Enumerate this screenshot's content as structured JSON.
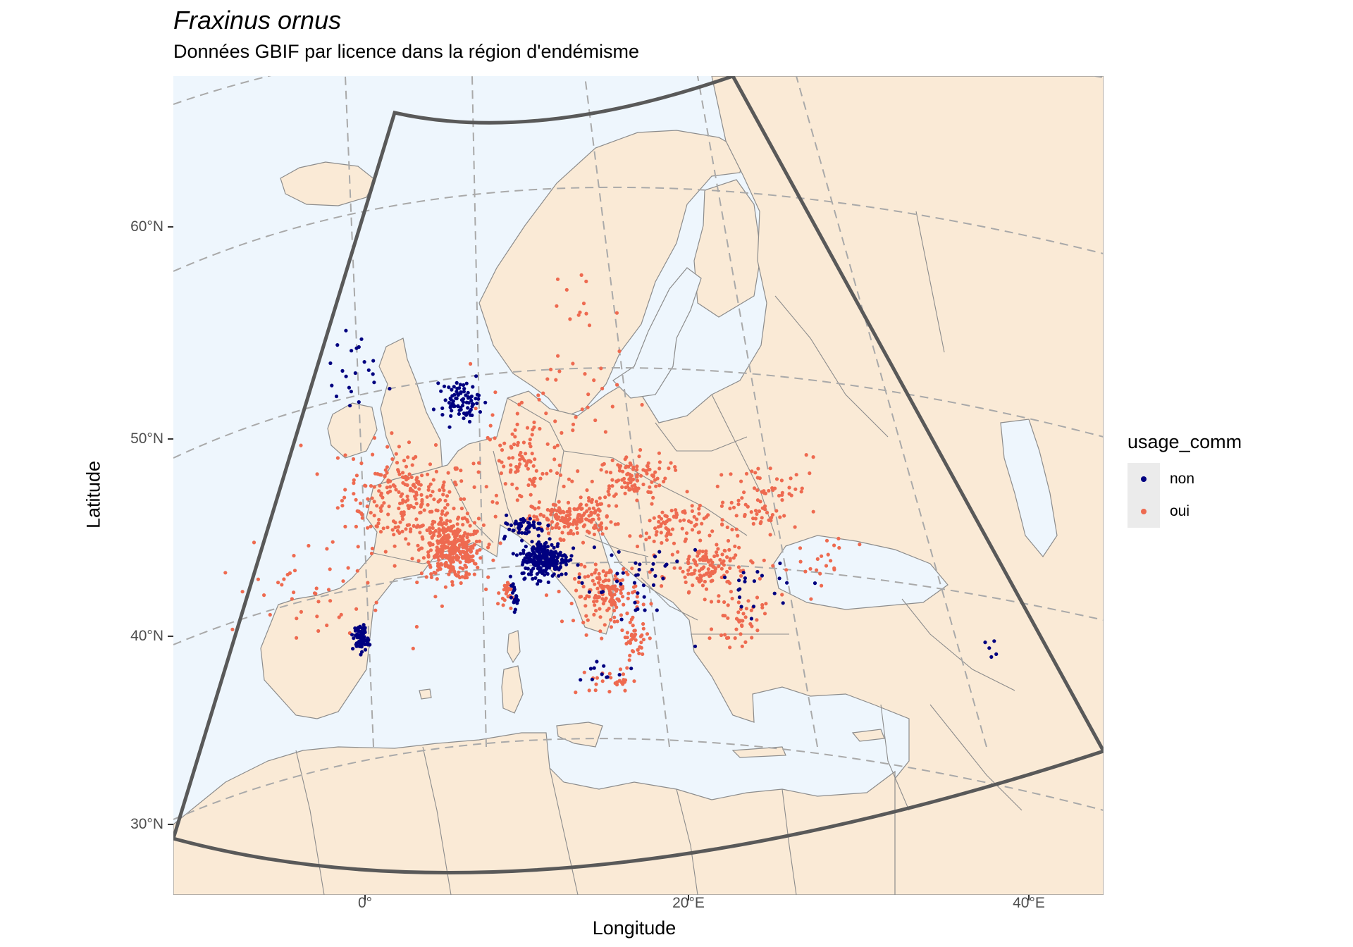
{
  "title": "Fraxinus ornus",
  "subtitle": "Données GBIF par licence dans la région d'endémisme",
  "x_axis": {
    "label": "Longitude",
    "ticks": [
      {
        "value": 0,
        "label": "0°"
      },
      {
        "value": 20,
        "label": "20°E"
      },
      {
        "value": 40,
        "label": "40°E"
      }
    ]
  },
  "y_axis": {
    "label": "Latitude",
    "ticks": [
      {
        "value": 30,
        "label": "30°N"
      },
      {
        "value": 40,
        "label": "40°N"
      },
      {
        "value": 50,
        "label": "50°N"
      },
      {
        "value": 60,
        "label": "60°N"
      }
    ]
  },
  "legend": {
    "title": "usage_comm",
    "items": [
      {
        "label": "non",
        "color": "#000080"
      },
      {
        "label": "oui",
        "color": "#ee6a50"
      }
    ]
  },
  "colors": {
    "sea": "#eef6fd",
    "land": "#faead6",
    "border": "#8c8c8c",
    "graticule": "#a9a9a9",
    "endemic_region": "#595959"
  },
  "map_data": {
    "extent_lon": [
      -12,
      44
    ],
    "extent_lat": [
      26,
      68
    ],
    "clusters": [
      {
        "usage": "oui",
        "lon": 2.5,
        "lat": 46.5,
        "spread": [
          3.2,
          2.2
        ],
        "n": 260
      },
      {
        "usage": "oui",
        "lon": 5.3,
        "lat": 44.2,
        "spread": [
          1.5,
          1.2
        ],
        "n": 320
      },
      {
        "usage": "oui",
        "lon": 9.5,
        "lat": 48.8,
        "spread": [
          2.2,
          2.0
        ],
        "n": 90
      },
      {
        "usage": "oui",
        "lon": 16.0,
        "lat": 47.8,
        "spread": [
          2.0,
          1.0
        ],
        "n": 110
      },
      {
        "usage": "oui",
        "lon": 12.5,
        "lat": 46.0,
        "spread": [
          2.0,
          0.8
        ],
        "n": 170
      },
      {
        "usage": "oui",
        "lon": 14.5,
        "lat": 42.0,
        "spread": [
          1.6,
          1.2
        ],
        "n": 150
      },
      {
        "usage": "oui",
        "lon": 16.0,
        "lat": 39.5,
        "spread": [
          0.7,
          0.8
        ],
        "n": 40
      },
      {
        "usage": "oui",
        "lon": 18.5,
        "lat": 45.0,
        "spread": [
          1.8,
          1.0
        ],
        "n": 80
      },
      {
        "usage": "oui",
        "lon": 20.5,
        "lat": 42.5,
        "spread": [
          1.8,
          1.2
        ],
        "n": 130
      },
      {
        "usage": "oui",
        "lon": 22.0,
        "lat": 39.5,
        "spread": [
          1.2,
          1.0
        ],
        "n": 45
      },
      {
        "usage": "oui",
        "lon": 24.0,
        "lat": 45.5,
        "spread": [
          2.5,
          1.5
        ],
        "n": 80
      },
      {
        "usage": "oui",
        "lon": 8.5,
        "lat": 42.2,
        "spread": [
          0.3,
          0.6
        ],
        "n": 25
      },
      {
        "usage": "oui",
        "lon": -3.5,
        "lat": 40.5,
        "spread": [
          4.0,
          2.5
        ],
        "n": 45
      },
      {
        "usage": "oui",
        "lon": 11.5,
        "lat": 52.0,
        "spread": [
          3.5,
          2.0
        ],
        "n": 40
      },
      {
        "usage": "oui",
        "lon": 12.5,
        "lat": 56.5,
        "spread": [
          2.5,
          2.0
        ],
        "n": 12
      },
      {
        "usage": "oui",
        "lon": 27.0,
        "lat": 41.5,
        "spread": [
          2.5,
          1.5
        ],
        "n": 25
      },
      {
        "usage": "oui",
        "lon": 14.5,
        "lat": 37.5,
        "spread": [
          1.0,
          0.5
        ],
        "n": 25
      },
      {
        "usage": "non",
        "lon": 10.8,
        "lat": 44.0,
        "spread": [
          1.2,
          0.8
        ],
        "n": 250
      },
      {
        "usage": "non",
        "lon": 9.5,
        "lat": 45.7,
        "spread": [
          1.2,
          0.4
        ],
        "n": 50
      },
      {
        "usage": "non",
        "lon": 5.5,
        "lat": 52.0,
        "spread": [
          1.0,
          0.8
        ],
        "n": 85
      },
      {
        "usage": "non",
        "lon": 0.2,
        "lat": 39.0,
        "spread": [
          0.35,
          0.6
        ],
        "n": 75
      },
      {
        "usage": "non",
        "lon": 9.0,
        "lat": 42.0,
        "spread": [
          0.2,
          0.5
        ],
        "n": 22
      },
      {
        "usage": "non",
        "lon": -1.2,
        "lat": 52.5,
        "spread": [
          1.3,
          1.8
        ],
        "n": 22
      },
      {
        "usage": "non",
        "lon": 16.0,
        "lat": 42.5,
        "spread": [
          2.5,
          2.5
        ],
        "n": 40
      },
      {
        "usage": "non",
        "lon": 22.5,
        "lat": 41.0,
        "spread": [
          2.0,
          1.2
        ],
        "n": 20
      },
      {
        "usage": "non",
        "lon": 35.0,
        "lat": 33.5,
        "spread": [
          1.0,
          0.8
        ],
        "n": 5
      },
      {
        "usage": "non",
        "lon": 14.0,
        "lat": 38.0,
        "spread": [
          1.0,
          0.6
        ],
        "n": 10
      }
    ]
  }
}
